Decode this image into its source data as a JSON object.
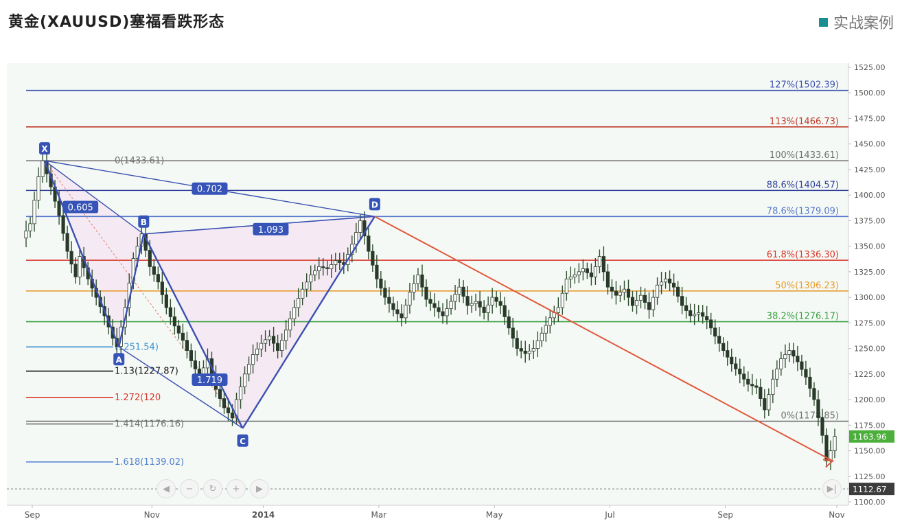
{
  "header": {
    "title": "黄金(XAUUSD)塞福看跌形态",
    "tag_label": "实战案例",
    "tag_color": "#1a8f8f"
  },
  "chart_data": {
    "type": "line",
    "instrument": "XAUUSD",
    "x_tick_labels": [
      "Sep",
      "Nov",
      "2014",
      "Mar",
      "May",
      "Jul",
      "Sep",
      "Nov"
    ],
    "ylim": [
      1100,
      1525
    ],
    "y_ticks": [
      1100,
      1125,
      1150,
      1175,
      1200,
      1225,
      1250,
      1275,
      1300,
      1325,
      1350,
      1375,
      1400,
      1425,
      1450,
      1475,
      1500,
      1525
    ],
    "y_tick_labels": [
      "1100.00",
      "1125.00",
      "1150.00",
      "1175.00",
      "1200.00",
      "1225.00",
      "1250.00",
      "1275.00",
      "1300.00",
      "1325.00",
      "1350.00",
      "1375.00",
      "1400.00",
      "1425.00",
      "1450.00",
      "1475.00",
      "1500.00",
      "1525.00"
    ],
    "price_labels": {
      "last": "1163.96",
      "last_value": 1163.96,
      "dotted": "1112.67",
      "dotted_value": 1112.67
    },
    "price_series": [
      {
        "x": 0,
        "y": 1358
      },
      {
        "x": 2,
        "y": 1372
      },
      {
        "x": 4,
        "y": 1418
      },
      {
        "x": 5,
        "y": 1433.6
      },
      {
        "x": 7,
        "y": 1408
      },
      {
        "x": 9,
        "y": 1380
      },
      {
        "x": 11,
        "y": 1345
      },
      {
        "x": 13,
        "y": 1320
      },
      {
        "x": 14,
        "y": 1340
      },
      {
        "x": 16,
        "y": 1318
      },
      {
        "x": 18,
        "y": 1300
      },
      {
        "x": 20,
        "y": 1282
      },
      {
        "x": 22,
        "y": 1260
      },
      {
        "x": 23,
        "y": 1252
      },
      {
        "x": 25,
        "y": 1290
      },
      {
        "x": 27,
        "y": 1338
      },
      {
        "x": 29,
        "y": 1362
      },
      {
        "x": 31,
        "y": 1330
      },
      {
        "x": 33,
        "y": 1315
      },
      {
        "x": 35,
        "y": 1290
      },
      {
        "x": 37,
        "y": 1272
      },
      {
        "x": 39,
        "y": 1258
      },
      {
        "x": 41,
        "y": 1238
      },
      {
        "x": 43,
        "y": 1222
      },
      {
        "x": 45,
        "y": 1240
      },
      {
        "x": 47,
        "y": 1210
      },
      {
        "x": 49,
        "y": 1192
      },
      {
        "x": 51,
        "y": 1182
      },
      {
        "x": 52,
        "y": 1200
      },
      {
        "x": 54,
        "y": 1225
      },
      {
        "x": 56,
        "y": 1244
      },
      {
        "x": 58,
        "y": 1255
      },
      {
        "x": 60,
        "y": 1262
      },
      {
        "x": 62,
        "y": 1248
      },
      {
        "x": 64,
        "y": 1268
      },
      {
        "x": 66,
        "y": 1290
      },
      {
        "x": 68,
        "y": 1308
      },
      {
        "x": 70,
        "y": 1322
      },
      {
        "x": 72,
        "y": 1330
      },
      {
        "x": 74,
        "y": 1328
      },
      {
        "x": 76,
        "y": 1336
      },
      {
        "x": 78,
        "y": 1332
      },
      {
        "x": 80,
        "y": 1352
      },
      {
        "x": 82,
        "y": 1375
      },
      {
        "x": 84,
        "y": 1345
      },
      {
        "x": 86,
        "y": 1318
      },
      {
        "x": 88,
        "y": 1300
      },
      {
        "x": 90,
        "y": 1288
      },
      {
        "x": 92,
        "y": 1280
      },
      {
        "x": 94,
        "y": 1305
      },
      {
        "x": 96,
        "y": 1322
      },
      {
        "x": 98,
        "y": 1298
      },
      {
        "x": 100,
        "y": 1290
      },
      {
        "x": 102,
        "y": 1282
      },
      {
        "x": 104,
        "y": 1296
      },
      {
        "x": 106,
        "y": 1310
      },
      {
        "x": 108,
        "y": 1292
      },
      {
        "x": 110,
        "y": 1296
      },
      {
        "x": 112,
        "y": 1285
      },
      {
        "x": 114,
        "y": 1300
      },
      {
        "x": 116,
        "y": 1292
      },
      {
        "x": 118,
        "y": 1270
      },
      {
        "x": 120,
        "y": 1250
      },
      {
        "x": 122,
        "y": 1245
      },
      {
        "x": 124,
        "y": 1250
      },
      {
        "x": 126,
        "y": 1265
      },
      {
        "x": 128,
        "y": 1280
      },
      {
        "x": 130,
        "y": 1290
      },
      {
        "x": 132,
        "y": 1318
      },
      {
        "x": 134,
        "y": 1322
      },
      {
        "x": 136,
        "y": 1328
      },
      {
        "x": 138,
        "y": 1320
      },
      {
        "x": 140,
        "y": 1340
      },
      {
        "x": 142,
        "y": 1310
      },
      {
        "x": 144,
        "y": 1302
      },
      {
        "x": 146,
        "y": 1308
      },
      {
        "x": 148,
        "y": 1292
      },
      {
        "x": 150,
        "y": 1302
      },
      {
        "x": 152,
        "y": 1288
      },
      {
        "x": 154,
        "y": 1312
      },
      {
        "x": 156,
        "y": 1318
      },
      {
        "x": 158,
        "y": 1310
      },
      {
        "x": 160,
        "y": 1292
      },
      {
        "x": 162,
        "y": 1282
      },
      {
        "x": 164,
        "y": 1285
      },
      {
        "x": 166,
        "y": 1278
      },
      {
        "x": 168,
        "y": 1262
      },
      {
        "x": 170,
        "y": 1248
      },
      {
        "x": 172,
        "y": 1235
      },
      {
        "x": 174,
        "y": 1225
      },
      {
        "x": 176,
        "y": 1215
      },
      {
        "x": 178,
        "y": 1212
      },
      {
        "x": 180,
        "y": 1190
      },
      {
        "x": 182,
        "y": 1220
      },
      {
        "x": 184,
        "y": 1240
      },
      {
        "x": 186,
        "y": 1248
      },
      {
        "x": 188,
        "y": 1237
      },
      {
        "x": 190,
        "y": 1222
      },
      {
        "x": 192,
        "y": 1200
      },
      {
        "x": 194,
        "y": 1165
      },
      {
        "x": 195,
        "y": 1140
      },
      {
        "x": 196,
        "y": 1150
      },
      {
        "x": 197,
        "y": 1164
      }
    ],
    "x_tick_positions": [
      2,
      31,
      58,
      86,
      114,
      142,
      170,
      197
    ],
    "fib_right": [
      {
        "label": "127%(1502.39)",
        "value": 1502.39,
        "color": "#3a4fb0"
      },
      {
        "label": "113%(1466.73)",
        "value": 1466.73,
        "color": "#c0392b"
      },
      {
        "label": "100%(1433.61)",
        "value": 1433.61,
        "color": "#707070"
      },
      {
        "label": "88.6%(1404.57)",
        "value": 1404.57,
        "color": "#2f3f9a"
      },
      {
        "label": "78.6%(1379.09)",
        "value": 1379.09,
        "color": "#5577cc"
      },
      {
        "label": "61.8%(1336.30)",
        "value": 1336.3,
        "color": "#d9362a"
      },
      {
        "label": "50%(1306.23)",
        "value": 1306.23,
        "color": "#e89a2c"
      },
      {
        "label": "38.2%(1276.17)",
        "value": 1276.17,
        "color": "#3aa043"
      },
      {
        "label": "0%(1178.85)",
        "value": 1178.85,
        "color": "#707070"
      }
    ],
    "fib_left": [
      {
        "label": "0(1433.61)",
        "value": 1433.61,
        "color": "#707070"
      },
      {
        "label": "(1251.54)",
        "value": 1251.54,
        "color": "#3b8fd0"
      },
      {
        "label": "1.13(1227.87)",
        "value": 1227.87,
        "color": "#111111"
      },
      {
        "label": "1.272(120",
        "value": 1202,
        "color": "#d9362a"
      },
      {
        "label": "1.414(1176.16)",
        "value": 1176.16,
        "color": "#707070"
      },
      {
        "label": "1.618(1139.02)",
        "value": 1139.02,
        "color": "#4f7ed0"
      }
    ],
    "pattern_points": [
      {
        "label": "X",
        "x": 5,
        "y": 1433.61
      },
      {
        "label": "A",
        "x": 23,
        "y": 1251.54
      },
      {
        "label": "B",
        "x": 29,
        "y": 1362
      },
      {
        "label": "C",
        "x": 53,
        "y": 1172
      },
      {
        "label": "D",
        "x": 85,
        "y": 1379.09
      }
    ],
    "ratio_labels": [
      "0.605",
      "0.702",
      "1.093",
      "1.719"
    ],
    "projection": {
      "from_x": 85,
      "from_y": 1379.09,
      "to_x": 196,
      "to_y": 1140,
      "color": "#e05a3e"
    },
    "pattern_color": "#3a4fb0",
    "fill_color": "#f4e7f2"
  }
}
